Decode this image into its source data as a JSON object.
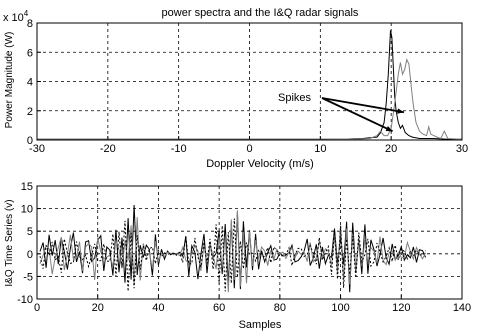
{
  "chart_data": [
    {
      "type": "line",
      "title": "power spectra and the I&Q radar signals",
      "xlabel": "Doppler Velocity (m/s)",
      "ylabel": "Power Magnitude (W)",
      "y_multiplier_label": "x 10",
      "y_multiplier_exponent": "4",
      "xlim": [
        -30,
        30
      ],
      "ylim": [
        0,
        8
      ],
      "x_ticks": [
        -30,
        -20,
        -10,
        0,
        10,
        20,
        30
      ],
      "y_ticks": [
        0,
        2,
        4,
        6,
        8
      ],
      "grid": true,
      "annotation": {
        "text": "Spikes",
        "arrows_to": [
          [
            21.8,
            1.9
          ],
          [
            20.2,
            0.6
          ]
        ]
      },
      "series": [
        {
          "color": "#000000",
          "points": [
            [
              -30,
              0.05
            ],
            [
              -20,
              0.05
            ],
            [
              -10,
              0.05
            ],
            [
              0,
              0.05
            ],
            [
              5,
              0.05
            ],
            [
              10,
              0.05
            ],
            [
              14,
              0.06
            ],
            [
              16,
              0.1
            ],
            [
              17,
              0.15
            ],
            [
              18,
              0.2
            ],
            [
              18.5,
              0.5
            ],
            [
              19,
              1.2
            ],
            [
              19.3,
              2.5
            ],
            [
              19.6,
              4.5
            ],
            [
              19.9,
              7.5
            ],
            [
              20.1,
              7.0
            ],
            [
              20.3,
              5.0
            ],
            [
              20.5,
              3.0
            ],
            [
              20.7,
              2.0
            ],
            [
              21,
              1.2
            ],
            [
              21.3,
              0.8
            ],
            [
              21.6,
              1.0
            ],
            [
              22,
              0.5
            ],
            [
              22.5,
              0.3
            ],
            [
              23,
              0.2
            ],
            [
              24,
              0.1
            ],
            [
              25,
              0.1
            ],
            [
              26,
              0.1
            ],
            [
              28,
              0.05
            ],
            [
              30,
              0.05
            ]
          ]
        },
        {
          "color": "#808080",
          "points": [
            [
              -30,
              0.03
            ],
            [
              0,
              0.03
            ],
            [
              10,
              0.03
            ],
            [
              15,
              0.05
            ],
            [
              17,
              0.1
            ],
            [
              18,
              0.3
            ],
            [
              18.5,
              0.6
            ],
            [
              19,
              0.3
            ],
            [
              19.5,
              0.3
            ],
            [
              20,
              0.8
            ],
            [
              20.5,
              2.5
            ],
            [
              21,
              4.5
            ],
            [
              21.3,
              5.3
            ],
            [
              21.6,
              4.5
            ],
            [
              21.9,
              4.8
            ],
            [
              22.2,
              5.5
            ],
            [
              22.5,
              5.2
            ],
            [
              22.8,
              3.8
            ],
            [
              23.1,
              2.5
            ],
            [
              23.5,
              1.2
            ],
            [
              24,
              0.6
            ],
            [
              24.5,
              0.4
            ],
            [
              25,
              0.3
            ],
            [
              25.3,
              0.9
            ],
            [
              25.6,
              0.4
            ],
            [
              26,
              0.3
            ],
            [
              26.5,
              0.2
            ],
            [
              27,
              0.1
            ],
            [
              27.5,
              0.6
            ],
            [
              28,
              0.1
            ],
            [
              30,
              0.05
            ]
          ]
        }
      ]
    },
    {
      "type": "line",
      "xlabel": "Samples",
      "ylabel": "I&Q Time Series (v)",
      "xlim": [
        0,
        140
      ],
      "ylim": [
        -10,
        15
      ],
      "x_ticks": [
        0,
        20,
        40,
        60,
        80,
        100,
        120,
        140
      ],
      "y_ticks": [
        -10,
        -5,
        0,
        5,
        10,
        15
      ],
      "grid": true,
      "series": [
        {
          "color": "#000000",
          "style": "solid",
          "x_start": 1,
          "x_step": 1,
          "values": [
            0.5,
            2.5,
            -3.1,
            4.2,
            -0.4,
            3,
            -2.3,
            3.5,
            0.5,
            -3.5,
            1.3,
            4.7,
            -1.8,
            0.5,
            -4.3,
            2.6,
            2.9,
            -1.7,
            -0.9,
            3,
            4,
            -3.8,
            1.5,
            0.8,
            -4.8,
            5.3,
            -4.1,
            3.6,
            -6.4,
            7.9,
            -5.7,
            10.8,
            -4.7,
            1.9,
            -0.8,
            1.9,
            1,
            -4.8,
            4.3,
            -2.5,
            1,
            -1.2,
            0.6,
            -0.2,
            0.1,
            0,
            0.3,
            -0.5,
            3.9,
            -4.9,
            1.8,
            0.3,
            -5.6,
            -0.1,
            4.4,
            -4.3,
            2.3,
            -0.9,
            0.1,
            5,
            -4.5,
            6.6,
            -6.5,
            6.9,
            -7.6,
            9.3,
            -7.8,
            7.2,
            -3,
            5.2,
            -3.6,
            4.4,
            -3.4,
            0.7,
            -1.8,
            0.3,
            1.8,
            -1.4,
            -1.2,
            0.2,
            -0.5,
            -0.3,
            0.3,
            1.9,
            -1.8,
            -1.5,
            -0.7,
            0.6,
            3.3,
            -2.6,
            -0.9,
            2.1,
            -3.3,
            1.5,
            -2.2,
            -0.3,
            -0.8,
            5.6,
            -2.3,
            3.7,
            -2.4,
            7.1,
            -8.5,
            6.9,
            -3.8,
            3.2,
            -4.5,
            6.5,
            -4.4,
            3.1,
            0.9,
            -2.7,
            -0.2,
            3.5,
            -0.8,
            -2.3,
            2.2,
            -1.3,
            -0.4,
            1.6,
            -1.4,
            -0.2,
            -0.9,
            1.5,
            -1.9,
            0.9,
            0.7,
            -0.8
          ]
        },
        {
          "color": "#808080",
          "style": "solid",
          "x_start": 1,
          "x_step": 1,
          "values": [
            -2.2,
            -0.3,
            1.8,
            1.2,
            -4.5,
            -0.8,
            1.3,
            3.7,
            -3.6,
            -0.1,
            4.2,
            -1.3,
            -0.9,
            2.7,
            -3.8,
            1.5,
            2.3,
            1.5,
            -5.8,
            3.6,
            0.4,
            -1,
            -0.7,
            -0.3,
            -2.9,
            3,
            0.9,
            -3.2,
            2.8,
            -1.5,
            6.3,
            -6.7,
            8.1,
            -5.9,
            2.3,
            -0.5,
            0.2,
            -3.2,
            2.8,
            -1.6,
            0.1,
            -0.6,
            0.3,
            0.1,
            -0.2,
            0.1,
            -0.4,
            1.4,
            -1.4,
            -2.2,
            0.1,
            1.8,
            0.6,
            -3.8,
            2.1,
            -2.4,
            2.3,
            -0.5,
            -3.4,
            3.8,
            -3,
            3.8,
            -8.5,
            7.6,
            -5.8,
            9.6,
            -7.2,
            4.8,
            -6.5,
            4.9,
            -2.7,
            3,
            -1.2,
            1.5,
            0.6,
            -2.6,
            0.8,
            -1.4,
            1,
            -0.1,
            0.4,
            -1,
            0.4,
            1.3,
            -0.9,
            0.6,
            -0.1,
            0.5,
            -1.7,
            2.5,
            -1.8,
            -0.9,
            2.9,
            -0.8,
            1.1,
            0.6,
            -2.7,
            4.4,
            -4.2,
            6.2,
            -5.7,
            5.6,
            -6.8,
            4.4,
            -3.5,
            3.6,
            -2.7,
            3,
            -1.8,
            1.4,
            0.5,
            -2.1,
            3.8,
            -1.5,
            -2.4,
            0.2,
            0.6,
            -1.4,
            0.3,
            -0.8,
            -0.8,
            2.5,
            0.5,
            -1.2,
            1.4,
            0.1,
            -1.1,
            0.2
          ]
        },
        {
          "color": "#000000",
          "style": "dashed",
          "x_start": 1,
          "x_step": 1,
          "values": [
            -0.5,
            -3.3,
            1.9,
            -0.4,
            2.6,
            -1.4,
            -0.6,
            -4.2,
            3.3,
            0.1,
            -2.1,
            -2,
            2.7,
            -0.6,
            -1.3,
            -0.3,
            -2.8,
            -0.3,
            2.2,
            -1.6,
            -1.5,
            2.2,
            -1.6,
            -1.7,
            4.4,
            -5,
            4.9,
            -3,
            7.3,
            -8.3,
            4.6,
            -7.6,
            4.1,
            -3.5,
            1.7,
            -1.5,
            1.1,
            1.5,
            -2.2,
            0.7,
            -0.6,
            0.2,
            -0.1,
            0.1,
            0.1,
            -0.3,
            0.3,
            -1.9,
            4,
            -2.3,
            -2.2,
            3.5,
            -0.7,
            -2.9,
            2.6,
            -2.1,
            3.3,
            -3.4,
            6.5,
            -6.8,
            6.2,
            -8.3,
            4.8,
            -6.5,
            7.8,
            -5.2,
            2.8,
            -3.3,
            2.5,
            -0.2,
            0.1,
            -1.6,
            0.7,
            -0.5,
            -0.6,
            1.4,
            -2,
            1.5,
            0.7,
            -0.6,
            -0.3,
            -0.2,
            1.3,
            -2.6,
            -0.2,
            1.2,
            1.2,
            -0.6,
            -0.1,
            1.8,
            0.1,
            -2.3,
            3.6,
            -1.4,
            0.2,
            1.6,
            -4.6,
            5.2,
            -5.6,
            6.2,
            -7.5,
            3.3,
            -4.6,
            3.9,
            -5.3,
            4.7,
            -1.8,
            -0.2,
            3.3,
            -2.7,
            -1.8,
            2.4,
            0.4,
            -1.8,
            -0.6,
            1.3,
            -1.7,
            1.9,
            -1.4,
            1.1,
            0.5,
            -1.1,
            0.6,
            -0.5,
            0.8,
            -0.2,
            -0.3,
            0.7
          ]
        }
      ]
    }
  ]
}
